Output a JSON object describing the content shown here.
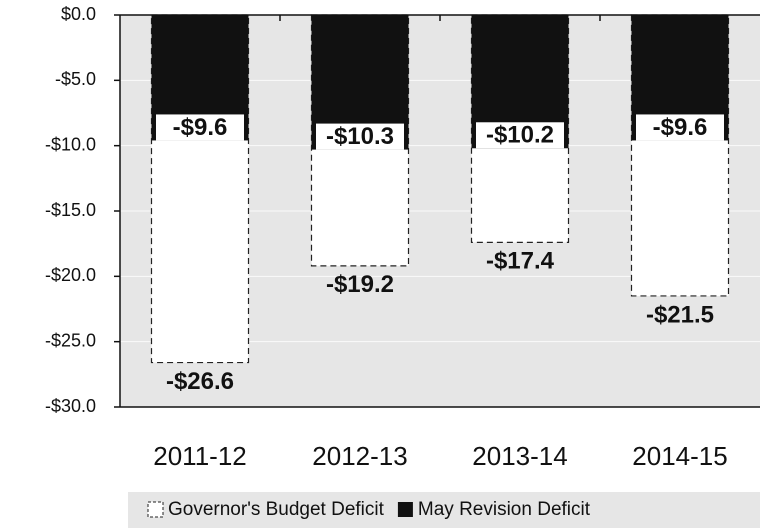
{
  "chart_data": {
    "type": "bar",
    "categories": [
      "2011-12",
      "2012-13",
      "2013-14",
      "2014-15"
    ],
    "series": [
      {
        "name": "Governor's Budget Deficit",
        "color": "#ffffff",
        "values": [
          -26.6,
          -19.2,
          -17.4,
          -21.5
        ],
        "value_labels": [
          "-$26.6",
          "-$19.2",
          "-$17.4",
          "-$21.5"
        ]
      },
      {
        "name": "May Revision Deficit",
        "color": "#111111",
        "values": [
          -9.6,
          -10.3,
          -10.2,
          -9.6
        ],
        "value_labels": [
          "-$9.6",
          "-$10.3",
          "-$10.2",
          "-$9.6"
        ]
      }
    ],
    "ylim": [
      -30,
      0
    ],
    "yticks": [
      {
        "value": 0,
        "label": "$0.0"
      },
      {
        "value": -5,
        "label": "-$5.0"
      },
      {
        "value": -10,
        "label": "-$10.0"
      },
      {
        "value": -15,
        "label": "-$15.0"
      },
      {
        "value": -20,
        "label": "-$20.0"
      },
      {
        "value": -25,
        "label": "-$25.0"
      },
      {
        "value": -30,
        "label": "-$30.0"
      }
    ],
    "grid": true
  }
}
